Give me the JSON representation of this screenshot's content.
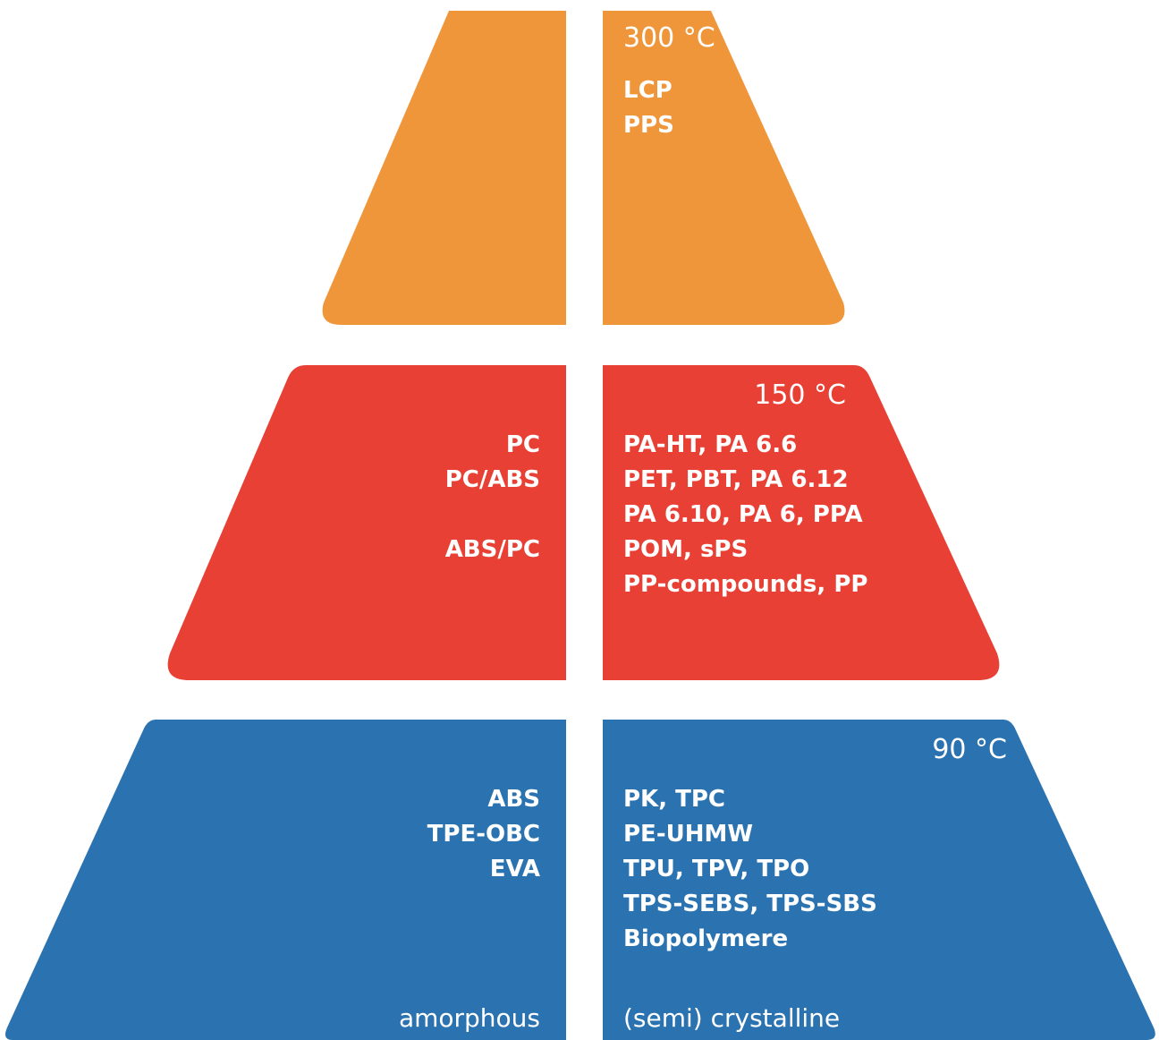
{
  "colors": {
    "top": "#f0963a",
    "middle": "#e84034",
    "bottom": "#2b73b0",
    "text": "#ffffff",
    "background": "#ffffff"
  },
  "tiers": {
    "top": {
      "temperature": "300 °C",
      "amorphous": [],
      "semi_crystalline": [
        "LCP",
        "PPS"
      ]
    },
    "middle": {
      "temperature": "150 °C",
      "amorphous": [
        "PC",
        "PC/ABS",
        "",
        "ABS/PC"
      ],
      "semi_crystalline": [
        "PA-HT, PA 6.6",
        "PET, PBT, PA 6.12",
        "PA 6.10, PA 6, PPA",
        "POM, sPS",
        "PP-compounds, PP"
      ]
    },
    "bottom": {
      "temperature": "90 °C",
      "amorphous": [
        "ABS",
        "TPE-OBC",
        "EVA"
      ],
      "semi_crystalline": [
        "PK, TPC",
        "PE-UHMW",
        "TPU, TPV, TPO",
        "TPS-SEBS, TPS-SBS",
        "Biopolymere"
      ]
    }
  },
  "columns": {
    "amorphous_label": "amorphous",
    "semi_crystalline_label": "(semi) crystalline"
  }
}
